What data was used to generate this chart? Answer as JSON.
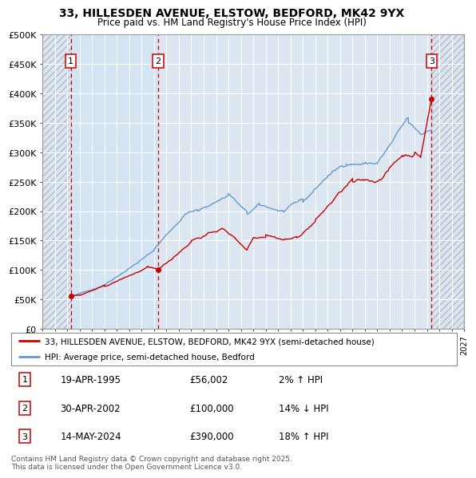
{
  "title": "33, HILLESDEN AVENUE, ELSTOW, BEDFORD, MK42 9YX",
  "subtitle": "Price paid vs. HM Land Registry's House Price Index (HPI)",
  "ylim": [
    0,
    500000
  ],
  "xlim_left": 1993.0,
  "xlim_right": 2027.0,
  "yticks": [
    0,
    50000,
    100000,
    150000,
    200000,
    250000,
    300000,
    350000,
    400000,
    450000,
    500000
  ],
  "ytick_labels": [
    "£0",
    "£50K",
    "£100K",
    "£150K",
    "£200K",
    "£250K",
    "£300K",
    "£350K",
    "£400K",
    "£450K",
    "£500K"
  ],
  "plot_bg_color": "#dce6f0",
  "shaded_bg_color": "#cfdded",
  "grid_color": "#ffffff",
  "hatch_color": "#b0bcc8",
  "hpi_line_color": "#6699cc",
  "price_line_color": "#cc0000",
  "vline_color": "#cc0000",
  "point1_x": 1995.29,
  "point1_y": 56002,
  "point1_label": "1",
  "point1_date": "19-APR-1995",
  "point1_price": "£56,002",
  "point1_hpi": "2% ↑ HPI",
  "point2_x": 2002.33,
  "point2_y": 100000,
  "point2_label": "2",
  "point2_date": "30-APR-2002",
  "point2_price": "£100,000",
  "point2_hpi": "14% ↓ HPI",
  "point3_x": 2024.37,
  "point3_y": 390000,
  "point3_label": "3",
  "point3_date": "14-MAY-2024",
  "point3_price": "£390,000",
  "point3_hpi": "18% ↑ HPI",
  "legend_line1": "33, HILLESDEN AVENUE, ELSTOW, BEDFORD, MK42 9YX (semi-detached house)",
  "legend_line2": "HPI: Average price, semi-detached house, Bedford",
  "footer": "Contains HM Land Registry data © Crown copyright and database right 2025.\nThis data is licensed under the Open Government Licence v3.0.",
  "data_start_year": 1995.29,
  "data_end_year": 2024.37
}
